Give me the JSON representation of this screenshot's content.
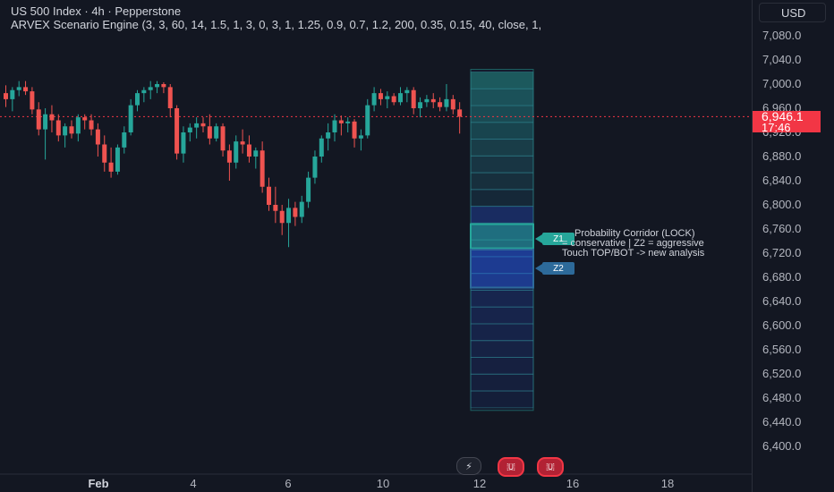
{
  "header": {
    "symbol_title": "US 500 Index · 4h · Pepperstone",
    "indicator_title": "ARVEX Scenario Engine (3, 3, 60, 14, 1.5, 1, 3, 0, 3, 1, 1.25, 0.9, 0.7, 1.2, 200, 0.35, 0.15, 40, close, 1,"
  },
  "currency_button": "USD",
  "price_axis": {
    "ticks": [
      "7,080.0",
      "7,040.0",
      "7,000.0",
      "6,960.0",
      "6,920.0",
      "6,880.0",
      "6,840.0",
      "6,800.0",
      "6,760.0",
      "6,720.0",
      "6,680.0",
      "6,640.0",
      "6,600.0",
      "6,560.0",
      "6,520.0",
      "6,480.0",
      "6,440.0",
      "6,400.0"
    ],
    "tick_values": [
      7080,
      7040,
      7000,
      6960,
      6920,
      6880,
      6840,
      6800,
      6760,
      6720,
      6680,
      6640,
      6600,
      6560,
      6520,
      6480,
      6440,
      6400
    ],
    "current_price": "6,946.1",
    "countdown": "17:46",
    "current_value": 6946.1
  },
  "time_axis": [
    {
      "label": "Feb",
      "bold": true
    },
    {
      "label": "4",
      "bold": false
    },
    {
      "label": "6",
      "bold": false
    },
    {
      "label": "10",
      "bold": false
    },
    {
      "label": "12",
      "bold": false
    },
    {
      "label": "16",
      "bold": false
    },
    {
      "label": "18",
      "bold": false
    }
  ],
  "zones": {
    "z1": {
      "label": "Z1",
      "top": 6768,
      "bottom": 6728,
      "color": "#26a69a"
    },
    "z2": {
      "label": "Z2",
      "top": 6726,
      "bottom": 6663,
      "color": "#2962ff"
    },
    "corridor": {
      "top": 7020,
      "bottom": 6464
    }
  },
  "annotation": {
    "line1": "Probability Corridor (LOCK)",
    "line2": "= conservative | Z2 = aggressive",
    "line3": "Touch TOP/BOT -> new analysis"
  },
  "colors": {
    "up": "#26a69a",
    "down": "#ef5350",
    "background": "#131722",
    "price_line": "#f23645"
  },
  "events": [
    {
      "icon": "lightning-icon"
    },
    {
      "icon": "us-flag-icon"
    },
    {
      "icon": "us-flag-icon"
    }
  ],
  "chart_data": {
    "type": "candlestick",
    "candles": [
      [
        6985,
        6998,
        6962,
        6975
      ],
      [
        6975,
        6995,
        6955,
        6990
      ],
      [
        6990,
        7005,
        6980,
        6995
      ],
      [
        6995,
        7005,
        6982,
        6988
      ],
      [
        6988,
        6995,
        6950,
        6958
      ],
      [
        6958,
        6970,
        6915,
        6925
      ],
      [
        6925,
        6960,
        6875,
        6950
      ],
      [
        6950,
        6965,
        6920,
        6940
      ],
      [
        6940,
        6950,
        6905,
        6915
      ],
      [
        6915,
        6935,
        6895,
        6930
      ],
      [
        6930,
        6940,
        6910,
        6918
      ],
      [
        6918,
        6950,
        6905,
        6945
      ],
      [
        6945,
        6950,
        6925,
        6940
      ],
      [
        6940,
        6950,
        6915,
        6925
      ],
      [
        6925,
        6935,
        6880,
        6900
      ],
      [
        6900,
        6915,
        6855,
        6870
      ],
      [
        6870,
        6895,
        6845,
        6855
      ],
      [
        6855,
        6900,
        6850,
        6895
      ],
      [
        6895,
        6930,
        6885,
        6920
      ],
      [
        6920,
        6975,
        6915,
        6965
      ],
      [
        6965,
        6990,
        6955,
        6985
      ],
      [
        6985,
        6995,
        6970,
        6990
      ],
      [
        6990,
        7005,
        6975,
        6995
      ],
      [
        6995,
        7005,
        6985,
        7000
      ],
      [
        7000,
        7003,
        6985,
        6995
      ],
      [
        6995,
        7000,
        6945,
        6960
      ],
      [
        6960,
        6965,
        6875,
        6885
      ],
      [
        6885,
        6930,
        6870,
        6920
      ],
      [
        6920,
        6935,
        6905,
        6928
      ],
      [
        6928,
        6945,
        6910,
        6935
      ],
      [
        6935,
        6945,
        6920,
        6930
      ],
      [
        6930,
        6950,
        6900,
        6910
      ],
      [
        6910,
        6935,
        6905,
        6930
      ],
      [
        6930,
        6935,
        6880,
        6890
      ],
      [
        6890,
        6900,
        6840,
        6870
      ],
      [
        6870,
        6915,
        6860,
        6905
      ],
      [
        6905,
        6925,
        6885,
        6900
      ],
      [
        6900,
        6915,
        6870,
        6880
      ],
      [
        6880,
        6895,
        6860,
        6890
      ],
      [
        6890,
        6905,
        6820,
        6830
      ],
      [
        6830,
        6845,
        6790,
        6800
      ],
      [
        6800,
        6830,
        6770,
        6790
      ],
      [
        6790,
        6800,
        6750,
        6770
      ],
      [
        6770,
        6810,
        6730,
        6795
      ],
      [
        6795,
        6805,
        6765,
        6780
      ],
      [
        6780,
        6815,
        6770,
        6805
      ],
      [
        6805,
        6855,
        6795,
        6845
      ],
      [
        6845,
        6890,
        6835,
        6880
      ],
      [
        6880,
        6915,
        6870,
        6910
      ],
      [
        6910,
        6935,
        6890,
        6920
      ],
      [
        6920,
        6950,
        6905,
        6940
      ],
      [
        6940,
        6948,
        6915,
        6935
      ],
      [
        6935,
        6945,
        6920,
        6938
      ],
      [
        6938,
        6942,
        6895,
        6910
      ],
      [
        6910,
        6925,
        6890,
        6915
      ],
      [
        6915,
        6975,
        6910,
        6965
      ],
      [
        6965,
        6995,
        6955,
        6985
      ],
      [
        6985,
        6992,
        6965,
        6975
      ],
      [
        6975,
        6988,
        6960,
        6980
      ],
      [
        6980,
        6985,
        6965,
        6970
      ],
      [
        6970,
        6995,
        6965,
        6985
      ],
      [
        6985,
        6995,
        6970,
        6990
      ],
      [
        6990,
        6995,
        6950,
        6960
      ],
      [
        6960,
        6978,
        6945,
        6970
      ],
      [
        6970,
        6982,
        6962,
        6975
      ],
      [
        6975,
        6985,
        6960,
        6970
      ],
      [
        6970,
        6978,
        6955,
        6962
      ],
      [
        6962,
        7000,
        6955,
        6975
      ],
      [
        6975,
        6982,
        6950,
        6958
      ],
      [
        6958,
        6970,
        6918,
        6946
      ]
    ]
  }
}
